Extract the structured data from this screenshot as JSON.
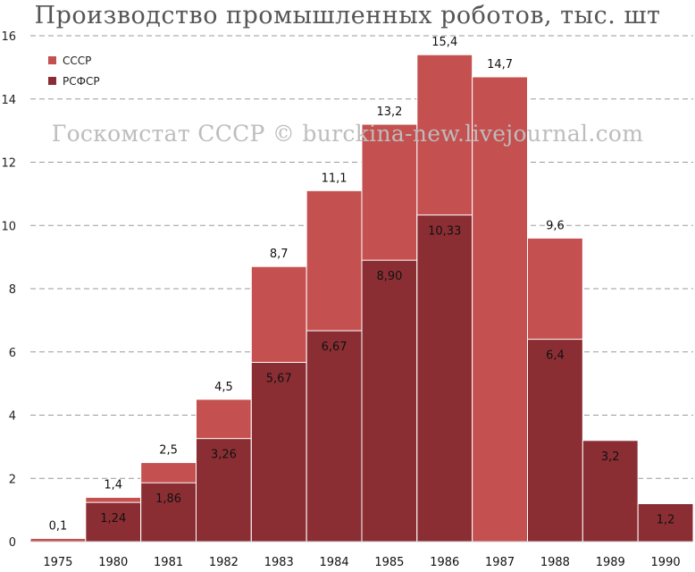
{
  "chart_data": {
    "type": "bar",
    "title": "Производство промышленных роботов, тыс. шт",
    "watermark": "Госкомстат СССР © burckina-new.livejournal.com",
    "categories": [
      "1975",
      "1980",
      "1981",
      "1982",
      "1983",
      "1984",
      "1985",
      "1986",
      "1987",
      "1988",
      "1989",
      "1990"
    ],
    "series": [
      {
        "name": "СССР",
        "color": "#c55050",
        "values": [
          0.1,
          1.4,
          2.5,
          4.5,
          8.7,
          11.1,
          13.2,
          15.4,
          14.7,
          9.6,
          null,
          null
        ],
        "labels": [
          "0,1",
          "1,4",
          "2,5",
          "4,5",
          "8,7",
          "11,1",
          "13,2",
          "15,4",
          "14,7",
          "9,6",
          "",
          ""
        ]
      },
      {
        "name": "РСФСР",
        "color": "#8b2e33",
        "values": [
          null,
          1.24,
          1.86,
          3.26,
          5.67,
          6.67,
          8.9,
          10.33,
          null,
          6.4,
          3.2,
          1.2
        ],
        "labels": [
          "",
          "1,24",
          "1,86",
          "3,26",
          "5,67",
          "6,67",
          "8,90",
          "10,33",
          "",
          "6,4",
          "3,2",
          "1,2"
        ]
      }
    ],
    "yticks": [
      "0",
      "2",
      "4",
      "6",
      "8",
      "10",
      "12",
      "14",
      "16"
    ],
    "ylim": [
      0,
      16
    ],
    "grid": true,
    "legend_position": "top-left"
  }
}
